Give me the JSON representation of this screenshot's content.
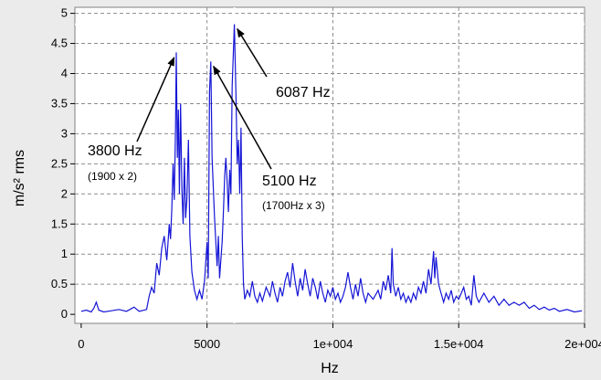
{
  "chart_data": {
    "type": "line",
    "xlabel": "Hz",
    "ylabel": "m/s² rms",
    "xlim": [
      -250,
      20000
    ],
    "ylim": [
      -0.15,
      5.1
    ],
    "grid": true,
    "x_ticks": [
      0,
      5000,
      10000,
      15000,
      20000
    ],
    "x_tick_labels": [
      "0",
      "5000",
      "1e+004",
      "1.5e+004",
      "2e+004"
    ],
    "y_ticks": [
      0,
      0.5,
      1,
      1.5,
      2,
      2.5,
      3,
      3.5,
      4,
      4.5,
      5
    ],
    "y_tick_labels": [
      "0",
      "0.5",
      "1",
      "1.5",
      "2",
      "2.5",
      "3",
      "3.5",
      "4",
      "4.5",
      "5"
    ],
    "line_color": "#1515d6",
    "cursor": {
      "x": 6087,
      "y": 4.82,
      "color": "#ffffff"
    },
    "series": [
      {
        "points": [
          [
            0,
            0.05
          ],
          [
            200,
            0.07
          ],
          [
            400,
            0.04
          ],
          [
            500,
            0.1
          ],
          [
            600,
            0.2
          ],
          [
            700,
            0.07
          ],
          [
            900,
            0.04
          ],
          [
            1200,
            0.06
          ],
          [
            1500,
            0.08
          ],
          [
            1800,
            0.05
          ],
          [
            2100,
            0.12
          ],
          [
            2300,
            0.05
          ],
          [
            2600,
            0.08
          ],
          [
            2700,
            0.3
          ],
          [
            2800,
            0.45
          ],
          [
            2900,
            0.35
          ],
          [
            3000,
            0.85
          ],
          [
            3100,
            0.65
          ],
          [
            3200,
            1.1
          ],
          [
            3300,
            1.3
          ],
          [
            3400,
            0.9
          ],
          [
            3450,
            1.2
          ],
          [
            3500,
            1.5
          ],
          [
            3550,
            1.25
          ],
          [
            3600,
            1.75
          ],
          [
            3650,
            2.5
          ],
          [
            3700,
            1.9
          ],
          [
            3750,
            3.1
          ],
          [
            3780,
            4.35
          ],
          [
            3820,
            2.6
          ],
          [
            3860,
            3.4
          ],
          [
            3900,
            2.0
          ],
          [
            3950,
            3.5
          ],
          [
            4000,
            2.1
          ],
          [
            4050,
            1.5
          ],
          [
            4100,
            2.6
          ],
          [
            4150,
            1.6
          ],
          [
            4200,
            1.9
          ],
          [
            4260,
            2.9
          ],
          [
            4320,
            1.3
          ],
          [
            4400,
            0.7
          ],
          [
            4500,
            0.4
          ],
          [
            4600,
            0.25
          ],
          [
            4700,
            0.4
          ],
          [
            4800,
            0.25
          ],
          [
            4900,
            0.55
          ],
          [
            5000,
            1.2
          ],
          [
            5050,
            0.6
          ],
          [
            5100,
            3.7
          ],
          [
            5150,
            4.2
          ],
          [
            5200,
            2.6
          ],
          [
            5300,
            1.6
          ],
          [
            5400,
            0.8
          ],
          [
            5450,
            1.3
          ],
          [
            5500,
            0.6
          ],
          [
            5600,
            1.2
          ],
          [
            5650,
            1.7
          ],
          [
            5700,
            2.3
          ],
          [
            5750,
            2.6
          ],
          [
            5800,
            2.2
          ],
          [
            5850,
            1.7
          ],
          [
            5900,
            2.4
          ],
          [
            5950,
            2.0
          ],
          [
            6000,
            3.8
          ],
          [
            6087,
            4.82
          ],
          [
            6150,
            3.6
          ],
          [
            6200,
            2.5
          ],
          [
            6250,
            2.9
          ],
          [
            6300,
            2.0
          ],
          [
            6350,
            3.1
          ],
          [
            6400,
            1.3
          ],
          [
            6450,
            0.5
          ],
          [
            6500,
            0.25
          ],
          [
            6600,
            0.4
          ],
          [
            6700,
            0.3
          ],
          [
            6800,
            0.55
          ],
          [
            6900,
            0.3
          ],
          [
            7000,
            0.2
          ],
          [
            7100,
            0.35
          ],
          [
            7200,
            0.22
          ],
          [
            7350,
            0.45
          ],
          [
            7500,
            0.3
          ],
          [
            7600,
            0.55
          ],
          [
            7700,
            0.35
          ],
          [
            7800,
            0.2
          ],
          [
            7900,
            0.45
          ],
          [
            8000,
            0.3
          ],
          [
            8100,
            0.55
          ],
          [
            8200,
            0.7
          ],
          [
            8300,
            0.45
          ],
          [
            8400,
            0.85
          ],
          [
            8500,
            0.55
          ],
          [
            8600,
            0.3
          ],
          [
            8700,
            0.6
          ],
          [
            8800,
            0.4
          ],
          [
            8900,
            0.75
          ],
          [
            9000,
            0.5
          ],
          [
            9100,
            0.3
          ],
          [
            9200,
            0.6
          ],
          [
            9300,
            0.45
          ],
          [
            9400,
            0.25
          ],
          [
            9500,
            0.55
          ],
          [
            9600,
            0.35
          ],
          [
            9700,
            0.2
          ],
          [
            9800,
            0.4
          ],
          [
            9900,
            0.3
          ],
          [
            10000,
            0.45
          ],
          [
            10100,
            0.25
          ],
          [
            10200,
            0.35
          ],
          [
            10300,
            0.2
          ],
          [
            10400,
            0.3
          ],
          [
            10500,
            0.45
          ],
          [
            10600,
            0.7
          ],
          [
            10700,
            0.45
          ],
          [
            10800,
            0.25
          ],
          [
            10900,
            0.5
          ],
          [
            11000,
            0.3
          ],
          [
            11100,
            0.6
          ],
          [
            11200,
            0.35
          ],
          [
            11300,
            0.2
          ],
          [
            11400,
            0.35
          ],
          [
            11600,
            0.25
          ],
          [
            11800,
            0.4
          ],
          [
            11900,
            0.25
          ],
          [
            12000,
            0.55
          ],
          [
            12100,
            0.4
          ],
          [
            12200,
            0.65
          ],
          [
            12300,
            0.35
          ],
          [
            12350,
            1.1
          ],
          [
            12400,
            0.5
          ],
          [
            12500,
            0.3
          ],
          [
            12600,
            0.45
          ],
          [
            12700,
            0.25
          ],
          [
            12800,
            0.35
          ],
          [
            12900,
            0.2
          ],
          [
            13000,
            0.3
          ],
          [
            13100,
            0.2
          ],
          [
            13200,
            0.35
          ],
          [
            13300,
            0.25
          ],
          [
            13400,
            0.45
          ],
          [
            13500,
            0.35
          ],
          [
            13600,
            0.55
          ],
          [
            13700,
            0.35
          ],
          [
            13800,
            0.75
          ],
          [
            13900,
            0.5
          ],
          [
            14000,
            1.05
          ],
          [
            14050,
            0.6
          ],
          [
            14100,
            0.95
          ],
          [
            14200,
            0.5
          ],
          [
            14300,
            0.35
          ],
          [
            14400,
            0.2
          ],
          [
            14500,
            0.35
          ],
          [
            14600,
            0.25
          ],
          [
            14700,
            0.4
          ],
          [
            14800,
            0.2
          ],
          [
            14900,
            0.3
          ],
          [
            15000,
            0.25
          ],
          [
            15200,
            0.45
          ],
          [
            15300,
            0.25
          ],
          [
            15400,
            0.3
          ],
          [
            15500,
            0.15
          ],
          [
            15600,
            0.65
          ],
          [
            15700,
            0.3
          ],
          [
            15800,
            0.2
          ],
          [
            16000,
            0.35
          ],
          [
            16200,
            0.2
          ],
          [
            16400,
            0.3
          ],
          [
            16600,
            0.15
          ],
          [
            16800,
            0.25
          ],
          [
            17000,
            0.15
          ],
          [
            17200,
            0.2
          ],
          [
            17400,
            0.15
          ],
          [
            17600,
            0.2
          ],
          [
            17800,
            0.1
          ],
          [
            18000,
            0.15
          ],
          [
            18200,
            0.08
          ],
          [
            18400,
            0.12
          ],
          [
            18600,
            0.07
          ],
          [
            18800,
            0.1
          ],
          [
            19000,
            0.05
          ],
          [
            19300,
            0.08
          ],
          [
            19600,
            0.04
          ],
          [
            19900,
            0.06
          ]
        ]
      }
    ],
    "annotations": [
      {
        "text": "6087 Hz",
        "sub": "",
        "point_x": 6087,
        "point_y": 4.82
      },
      {
        "text": "3800 Hz",
        "sub": "(1900 x 2)",
        "point_x": 3780,
        "point_y": 4.35
      },
      {
        "text": "5100 Hz",
        "sub": "(1700Hz x 3)",
        "point_x": 5150,
        "point_y": 4.2
      }
    ]
  }
}
